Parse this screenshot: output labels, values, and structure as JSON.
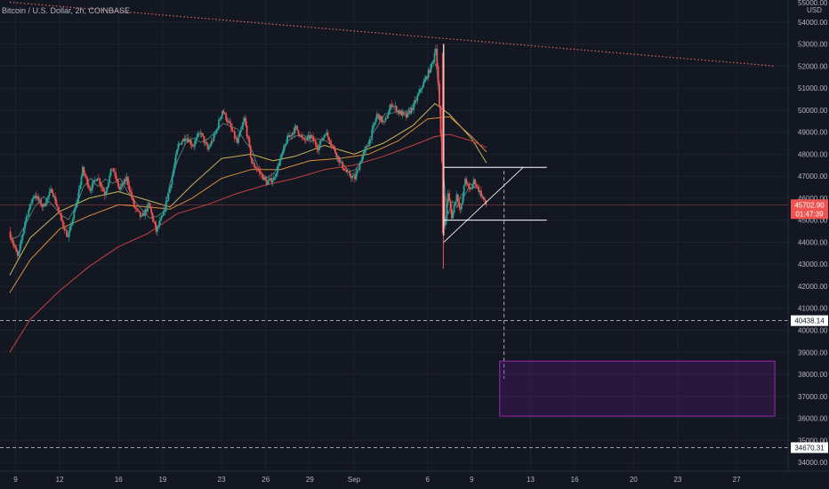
{
  "header": {
    "title": "Bitcoin / U.S. Dollar, 2h, COINBASE"
  },
  "axis": {
    "currency": "USD",
    "top_partial_label": "55000.00"
  },
  "colors": {
    "background": "#131722",
    "grid": "#1e222d",
    "up_candle": "#26a69a",
    "down_candle": "#ef5350",
    "ma_fast": "#9598a1",
    "ma_yellow": "#c9b458",
    "ma_orange": "#d98c3a",
    "ma_red": "#c2413f",
    "trendline": "#e06666",
    "zone": "#7b1fa2",
    "price_badge": "#ef5350"
  },
  "chart_data": {
    "type": "candlestick",
    "title": "Bitcoin / U.S. Dollar, 2h, COINBASE",
    "ylim": [
      33600,
      55000
    ],
    "y_ticks": [
      34000,
      35000,
      36000,
      37000,
      38000,
      39000,
      40000,
      41000,
      42000,
      43000,
      44000,
      45000,
      46000,
      47000,
      48000,
      49000,
      50000,
      51000,
      52000,
      53000,
      54000
    ],
    "x_ticks": [
      {
        "label": "9",
        "day": 9
      },
      {
        "label": "12",
        "day": 12
      },
      {
        "label": "16",
        "day": 16
      },
      {
        "label": "19",
        "day": 19
      },
      {
        "label": "23",
        "day": 23
      },
      {
        "label": "26",
        "day": 26
      },
      {
        "label": "29",
        "day": 29
      },
      {
        "label": "Sep",
        "day": 32
      },
      {
        "label": "6",
        "day": 37
      },
      {
        "label": "9",
        "day": 40
      },
      {
        "label": "13",
        "day": 44
      },
      {
        "label": "16",
        "day": 47
      },
      {
        "label": "20",
        "day": 51
      },
      {
        "label": "23",
        "day": 54
      },
      {
        "label": "27",
        "day": 58
      }
    ],
    "price_path": [
      [
        8.6,
        44500
      ],
      [
        9.2,
        43300
      ],
      [
        9.7,
        45000
      ],
      [
        10.3,
        46200
      ],
      [
        10.9,
        45600
      ],
      [
        11.5,
        46400
      ],
      [
        12.1,
        45100
      ],
      [
        12.6,
        44200
      ],
      [
        13.2,
        45800
      ],
      [
        13.6,
        47300
      ],
      [
        14.1,
        46400
      ],
      [
        14.6,
        47000
      ],
      [
        15.1,
        46200
      ],
      [
        15.6,
        47400
      ],
      [
        16.1,
        46400
      ],
      [
        16.6,
        46900
      ],
      [
        17.1,
        45600
      ],
      [
        17.6,
        45100
      ],
      [
        18.1,
        45700
      ],
      [
        18.6,
        44500
      ],
      [
        19.1,
        45300
      ],
      [
        19.5,
        46400
      ],
      [
        20.1,
        48400
      ],
      [
        20.6,
        48800
      ],
      [
        21.1,
        48400
      ],
      [
        21.6,
        49000
      ],
      [
        22.1,
        48200
      ],
      [
        22.6,
        48900
      ],
      [
        23.1,
        50000
      ],
      [
        23.6,
        49300
      ],
      [
        24.1,
        48500
      ],
      [
        24.6,
        49600
      ],
      [
        25.1,
        47600
      ],
      [
        25.6,
        47200
      ],
      [
        26.1,
        46700
      ],
      [
        26.6,
        46900
      ],
      [
        27.1,
        47900
      ],
      [
        27.5,
        48700
      ],
      [
        28.1,
        49200
      ],
      [
        28.6,
        48600
      ],
      [
        29.1,
        48800
      ],
      [
        29.6,
        48300
      ],
      [
        30.1,
        49000
      ],
      [
        30.5,
        48500
      ],
      [
        31.1,
        47600
      ],
      [
        31.6,
        47100
      ],
      [
        32.1,
        46900
      ],
      [
        32.6,
        47900
      ],
      [
        33.1,
        48600
      ],
      [
        33.6,
        49800
      ],
      [
        34.1,
        49400
      ],
      [
        34.6,
        50300
      ],
      [
        35.1,
        49900
      ],
      [
        35.6,
        49700
      ],
      [
        36.1,
        50200
      ],
      [
        36.6,
        51000
      ],
      [
        37.1,
        51700
      ],
      [
        37.4,
        52200
      ],
      [
        37.6,
        52900
      ],
      [
        37.8,
        50800
      ],
      [
        38.0,
        48000
      ],
      [
        38.2,
        44400
      ],
      [
        38.4,
        46300
      ],
      [
        38.7,
        45100
      ],
      [
        39.0,
        46200
      ],
      [
        39.3,
        45400
      ],
      [
        39.6,
        46900
      ],
      [
        39.9,
        46300
      ],
      [
        40.2,
        46800
      ],
      [
        40.5,
        46400
      ],
      [
        40.8,
        46000
      ],
      [
        41.0,
        45700
      ]
    ],
    "moving_averages": [
      {
        "color_key": "ma_yellow",
        "points": [
          [
            8.6,
            42500
          ],
          [
            10,
            44200
          ],
          [
            12,
            45400
          ],
          [
            14,
            46000
          ],
          [
            16,
            46300
          ],
          [
            18,
            45900
          ],
          [
            19.5,
            45600
          ],
          [
            21,
            46600
          ],
          [
            23,
            47800
          ],
          [
            25,
            48000
          ],
          [
            26.5,
            47700
          ],
          [
            28,
            47900
          ],
          [
            30,
            48400
          ],
          [
            32,
            48000
          ],
          [
            34,
            48500
          ],
          [
            36,
            49300
          ],
          [
            37.5,
            50300
          ],
          [
            38.5,
            49800
          ],
          [
            40,
            48700
          ],
          [
            41,
            47600
          ]
        ]
      },
      {
        "color_key": "ma_orange",
        "points": [
          [
            8.6,
            41700
          ],
          [
            10,
            43200
          ],
          [
            12,
            44600
          ],
          [
            14,
            45200
          ],
          [
            16,
            45700
          ],
          [
            18,
            45600
          ],
          [
            19.5,
            45500
          ],
          [
            21,
            46000
          ],
          [
            23,
            46900
          ],
          [
            25,
            47300
          ],
          [
            27,
            47300
          ],
          [
            29,
            47700
          ],
          [
            31,
            47800
          ],
          [
            33,
            48000
          ],
          [
            35,
            48600
          ],
          [
            37,
            49600
          ],
          [
            38.5,
            49700
          ],
          [
            40,
            48800
          ],
          [
            41,
            48100
          ]
        ]
      },
      {
        "color_key": "ma_red",
        "points": [
          [
            8.6,
            39000
          ],
          [
            10,
            40500
          ],
          [
            12,
            41800
          ],
          [
            14,
            42900
          ],
          [
            16,
            43800
          ],
          [
            18,
            44400
          ],
          [
            20,
            45300
          ],
          [
            22,
            45700
          ],
          [
            24,
            46200
          ],
          [
            26,
            46600
          ],
          [
            28,
            46900
          ],
          [
            30,
            47300
          ],
          [
            32,
            47500
          ],
          [
            34,
            47900
          ],
          [
            36,
            48400
          ],
          [
            37.5,
            48800
          ],
          [
            38.5,
            48900
          ],
          [
            40,
            48600
          ],
          [
            41,
            48300
          ]
        ]
      }
    ],
    "trendline": {
      "start": [
        8.6,
        54900
      ],
      "end": [
        60.6,
        52000
      ],
      "style": "dotted"
    },
    "horizontal_lines": [
      {
        "value": 40438.14,
        "label": "40438.14",
        "style": "dashed"
      },
      {
        "value": 34670.31,
        "label": "34670.31",
        "style": "dashed"
      },
      {
        "value": 45702.9,
        "label": "45702.90",
        "style": "solid-thin"
      }
    ],
    "pattern": {
      "pole": {
        "day": 38.1,
        "top": 53000,
        "bottom": 44300
      },
      "box_top": 47400,
      "box_bottom": 45000,
      "box_start": 38.1,
      "box_end": 45.1,
      "triangle": {
        "apex": [
          43.5,
          47400
        ],
        "lower_start": [
          38.1,
          44000
        ]
      },
      "projection_day": 42.2,
      "projection_end": 37800
    },
    "target_zone": {
      "start_day": 41.9,
      "end_day": 60.6,
      "top": 38600,
      "bottom": 36100
    },
    "last_price": {
      "value": "45702.90",
      "countdown": "01:47:39"
    }
  }
}
